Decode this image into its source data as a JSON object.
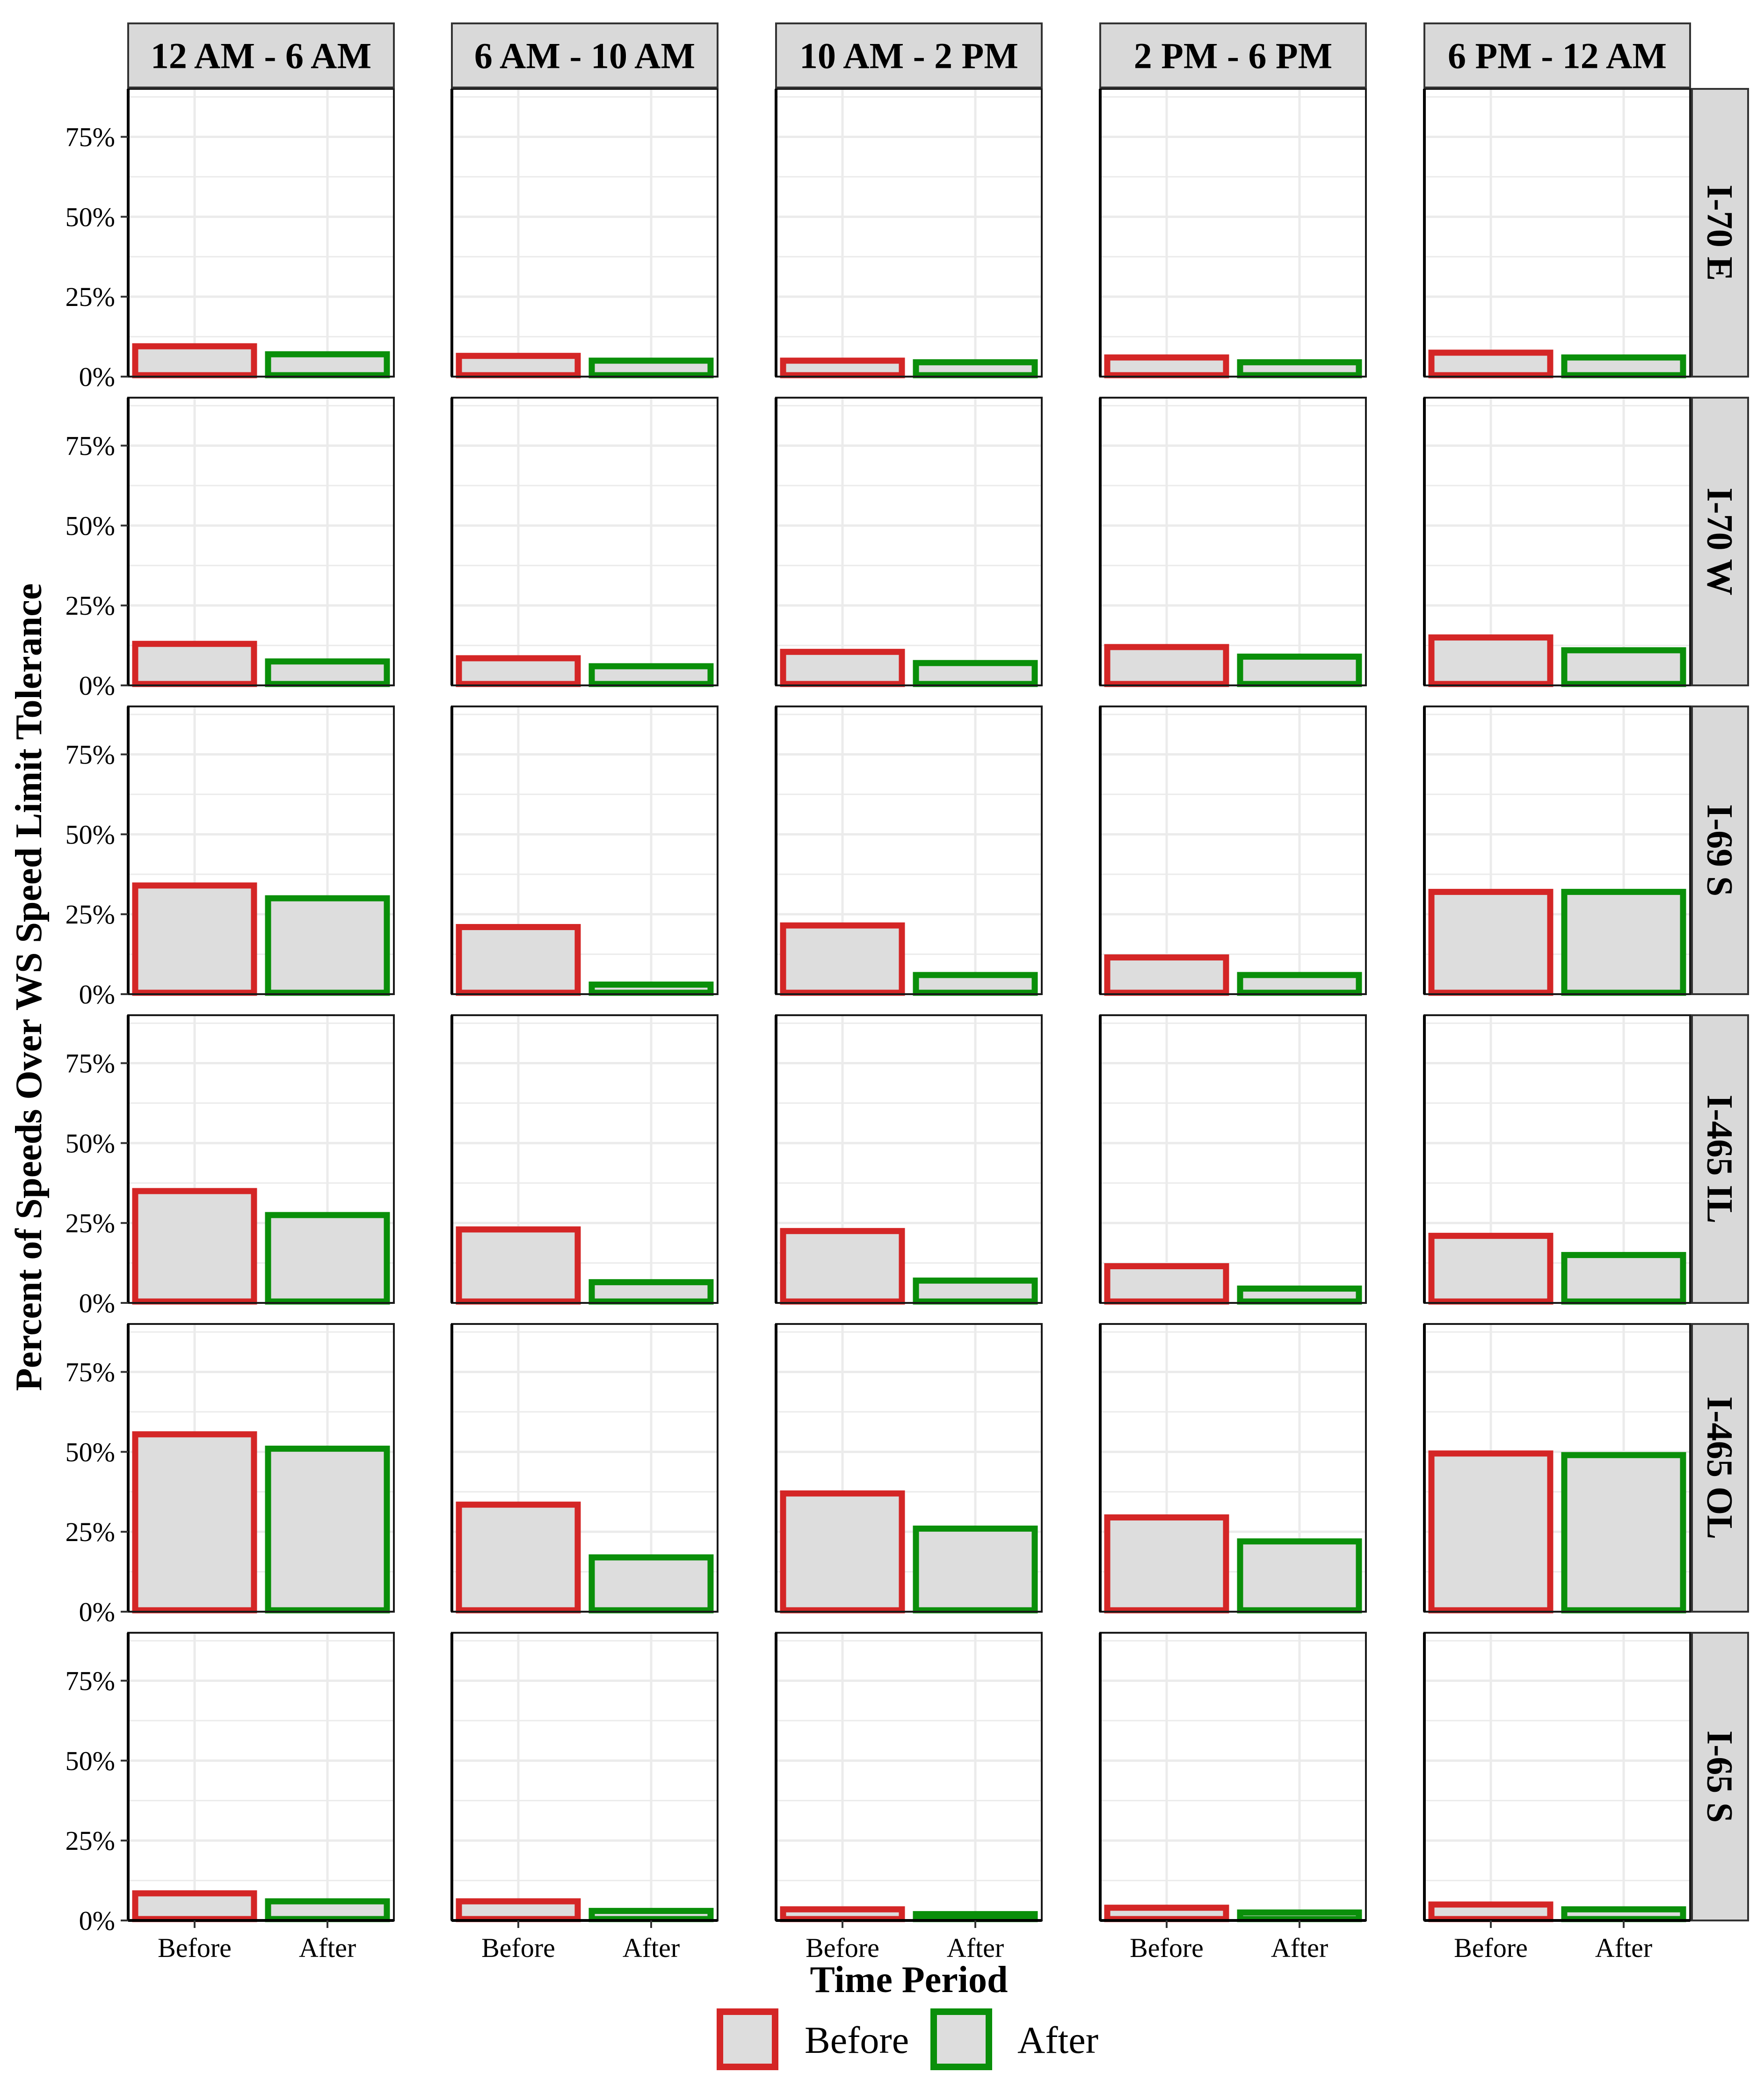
{
  "chart_data": {
    "type": "bar",
    "layout": "facet_grid",
    "xlabel": "Time Period",
    "ylabel": "Percent of Speeds Over WS Speed Limit Tolerance",
    "ylim": [
      0,
      90
    ],
    "y_ticks": [
      0,
      25,
      50,
      75
    ],
    "y_tick_labels": [
      "0%",
      "25%",
      "50%",
      "75%"
    ],
    "categories": [
      "Before",
      "After"
    ],
    "column_facets": [
      "12 AM - 6 AM",
      "6 AM - 10 AM",
      "10 AM - 2 PM",
      "2 PM - 6 PM",
      "6 PM - 12 AM"
    ],
    "row_facets": [
      "I-70 E",
      "I-70 W",
      "I-69 S",
      "I-465 IL",
      "I-465 OL",
      "I-65 S"
    ],
    "values": {
      "I-70 E": {
        "Before": [
          10,
          7,
          5.5,
          6.5,
          8
        ],
        "After": [
          7.5,
          5.5,
          5,
          5,
          6.5
        ]
      },
      "I-70 W": {
        "Before": [
          13.5,
          9,
          11,
          12.5,
          15.5
        ],
        "After": [
          8,
          6.5,
          7.5,
          9.5,
          11.5
        ]
      },
      "I-69 S": {
        "Before": [
          34.5,
          21.5,
          22,
          12,
          32.5
        ],
        "After": [
          30.5,
          3.5,
          6.5,
          6.5,
          32.5
        ]
      },
      "I-465 IL": {
        "Before": [
          35.5,
          23.5,
          23,
          12,
          21.5
        ],
        "After": [
          28,
          7,
          7.5,
          5,
          15.5
        ]
      },
      "I-465 OL": {
        "Before": [
          56,
          34,
          37.5,
          30,
          50
        ],
        "After": [
          51.5,
          17.5,
          26.5,
          22.5,
          49.5
        ]
      },
      "I-65 S": {
        "Before": [
          9,
          6.5,
          4,
          4.5,
          5.5
        ],
        "After": [
          6.5,
          3.5,
          2.5,
          3,
          4
        ]
      }
    },
    "legend": {
      "position": "bottom",
      "items": [
        {
          "label": "Before",
          "color": "#D42626"
        },
        {
          "label": "After",
          "color": "#0A8F0A"
        }
      ]
    },
    "colors": {
      "before": "#D42626",
      "after": "#0A8F0A",
      "bar_fill": "#DDDDDD",
      "strip_fill": "#D9D9D9",
      "grid": "#EBEBEB"
    }
  }
}
